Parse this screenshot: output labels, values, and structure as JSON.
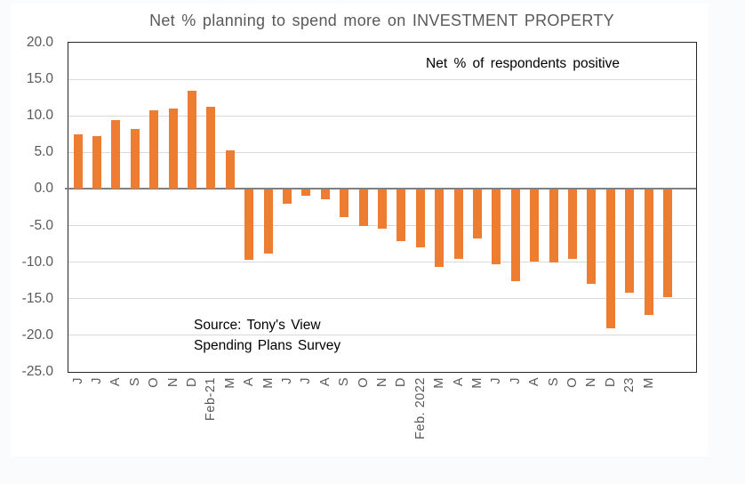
{
  "page": {
    "background": "#fafbfd",
    "card_background": "#ffffff"
  },
  "chart_data": {
    "type": "bar",
    "title": "Net % planning to spend more on INVESTMENT PROPERTY",
    "annotation": "Net % of respondents positive",
    "source_lines": [
      "Source: Tony's View",
      "Spending Plans Survey"
    ],
    "xlabel": "",
    "ylabel": "",
    "ylim": [
      -25,
      20
    ],
    "ytick_step": 5,
    "ytick_labels": [
      "20.0",
      "15.0",
      "10.0",
      "5.0",
      "0.0",
      "-5.0",
      "-10.0",
      "-15.0",
      "-20.0",
      "-25.0"
    ],
    "grid": true,
    "legend_position": "none",
    "bar_color": "#ED7D31",
    "grid_color": "#D9D9D9",
    "zero_line_color": "#808080",
    "plot_border_color": "#262626",
    "axis_text_color": "#595959",
    "title_color": "#595959",
    "right_pad_slots": 1,
    "categories": [
      "J",
      "J",
      "A",
      "S",
      "O",
      "N",
      "D",
      "Feb-21",
      "M",
      "A",
      "M",
      "J",
      "J",
      "A",
      "S",
      "O",
      "N",
      "D",
      "Feb. 2022",
      "M",
      "A",
      "M",
      "J",
      "J",
      "A",
      "S",
      "O",
      "N",
      "D",
      "23",
      "M",
      ""
    ],
    "values": [
      7.5,
      7.2,
      9.4,
      8.2,
      10.7,
      11.0,
      13.4,
      11.2,
      5.3,
      -9.7,
      -8.8,
      -2.0,
      -0.9,
      -1.4,
      -3.8,
      -5.1,
      -5.4,
      -7.1,
      -8.0,
      -10.7,
      -9.6,
      -6.8,
      -10.3,
      -12.6,
      -9.9,
      -10.1,
      -9.5,
      -13.0,
      -19.0,
      -14.2,
      -17.2,
      -14.8
    ]
  }
}
